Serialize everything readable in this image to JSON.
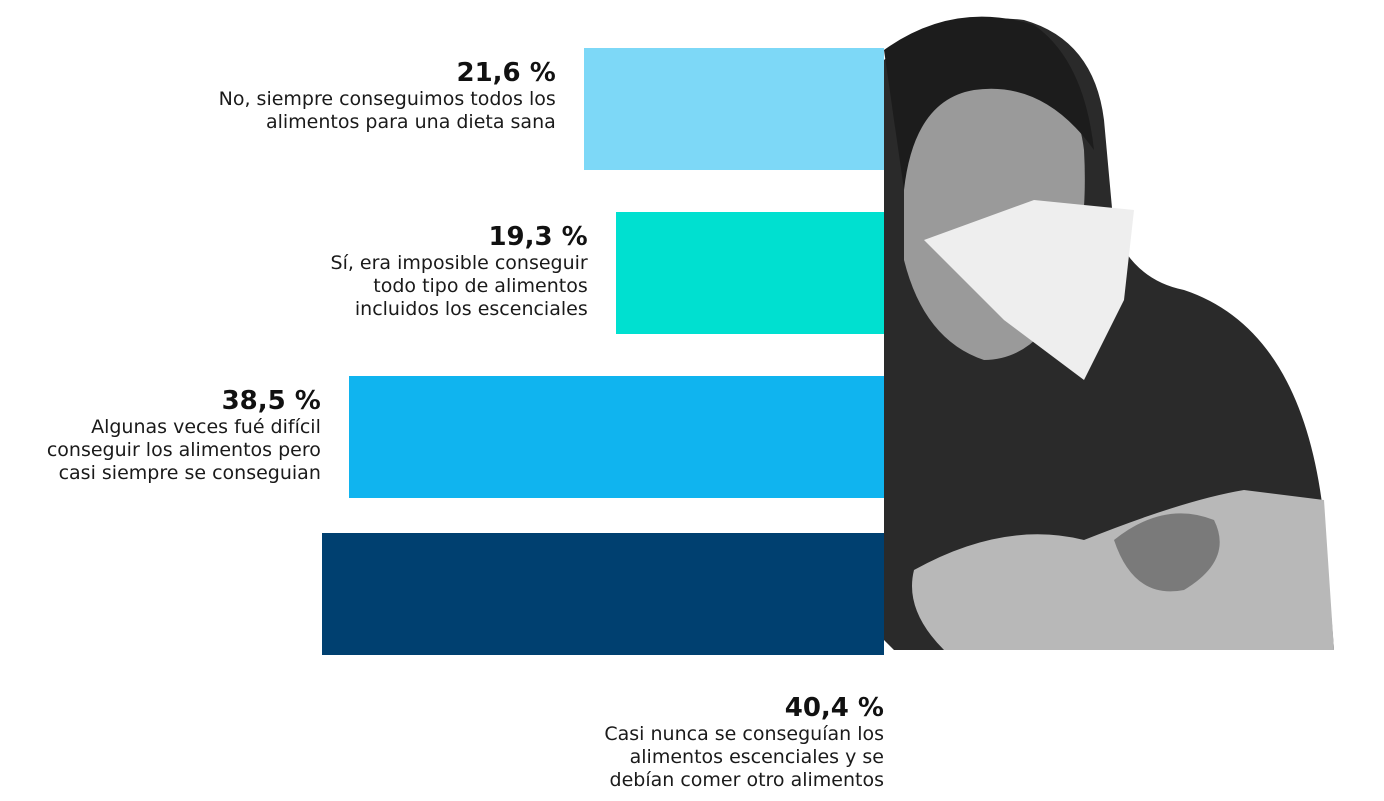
{
  "chart_data": {
    "type": "bar",
    "orientation": "horizontal",
    "categories": [
      "No, siempre conseguimos todos los\nalimentos para una dieta sana",
      "Sí, era imposible conseguir\ntodo tipo de alimentos\nincluidos los escenciales",
      "Algunas veces fué difícil\nconseguir los alimentos pero\ncasi siempre se conseguian",
      "Casi nunca se conseguían los\nalimentos escenciales y se\ndebían comer otro alimentos"
    ],
    "values": [
      21.6,
      19.3,
      38.5,
      40.4
    ],
    "value_labels": [
      "21,6 %",
      "19,3 %",
      "38,5 %",
      "40,4 %"
    ],
    "colors": [
      "#7dd8f7",
      "#00e0d0",
      "#10b4ef",
      "#004070"
    ]
  }
}
